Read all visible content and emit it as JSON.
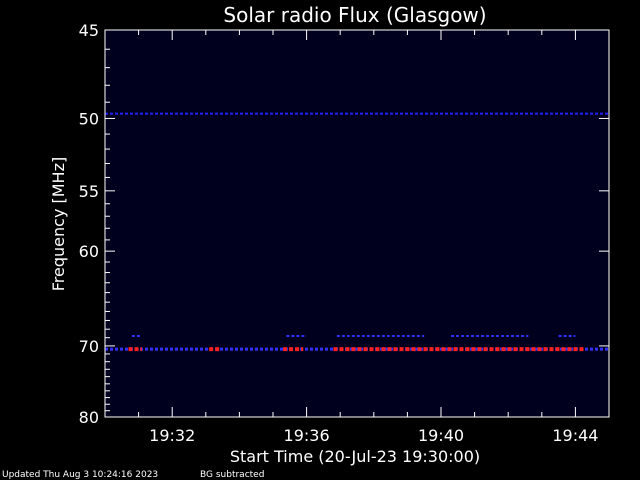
{
  "chart_data": {
    "type": "heatmap",
    "title": "Solar radio Flux (Glasgow)",
    "xlabel": "Start Time (20-Jul-23 19:30:00)",
    "ylabel": "Frequency [MHz]",
    "x_tick_labels": [
      "19:32",
      "19:36",
      "19:40",
      "19:44"
    ],
    "x_tick_minutes": [
      2,
      6,
      10,
      14
    ],
    "xlim_minutes": [
      0,
      15
    ],
    "y_tick_labels": [
      "45",
      "50",
      "55",
      "60",
      "70",
      "80"
    ],
    "y_tick_values": [
      45,
      50,
      55,
      60,
      70,
      80
    ],
    "ylim": [
      45,
      80
    ],
    "y_scale": "reciprocal",
    "background_color": "#00001e",
    "bands": [
      {
        "freq": 49.7,
        "intensity": "low",
        "color": "#2020ff",
        "spans": [
          [
            0.0,
            15.0
          ]
        ]
      },
      {
        "freq": 68.8,
        "intensity": "low",
        "color": "#3030ff",
        "spans": [
          [
            0.8,
            1.1
          ],
          [
            5.4,
            6.0
          ],
          [
            6.9,
            9.5
          ],
          [
            10.3,
            12.6
          ],
          [
            13.5,
            14.0
          ]
        ]
      },
      {
        "freq": 70.4,
        "intensity": "high",
        "color": "#ff2020",
        "spans": [
          [
            0.7,
            1.1
          ],
          [
            3.1,
            3.4
          ],
          [
            5.3,
            5.9
          ],
          [
            6.8,
            14.3
          ]
        ]
      },
      {
        "freq": 70.4,
        "intensity": "medium",
        "color": "#3030ff",
        "spans": [
          [
            0.0,
            15.0
          ]
        ]
      }
    ]
  },
  "footer": {
    "updated": "Updated Thu Aug  3 10:24:16 2023",
    "bg_note": "BG subtracted"
  }
}
